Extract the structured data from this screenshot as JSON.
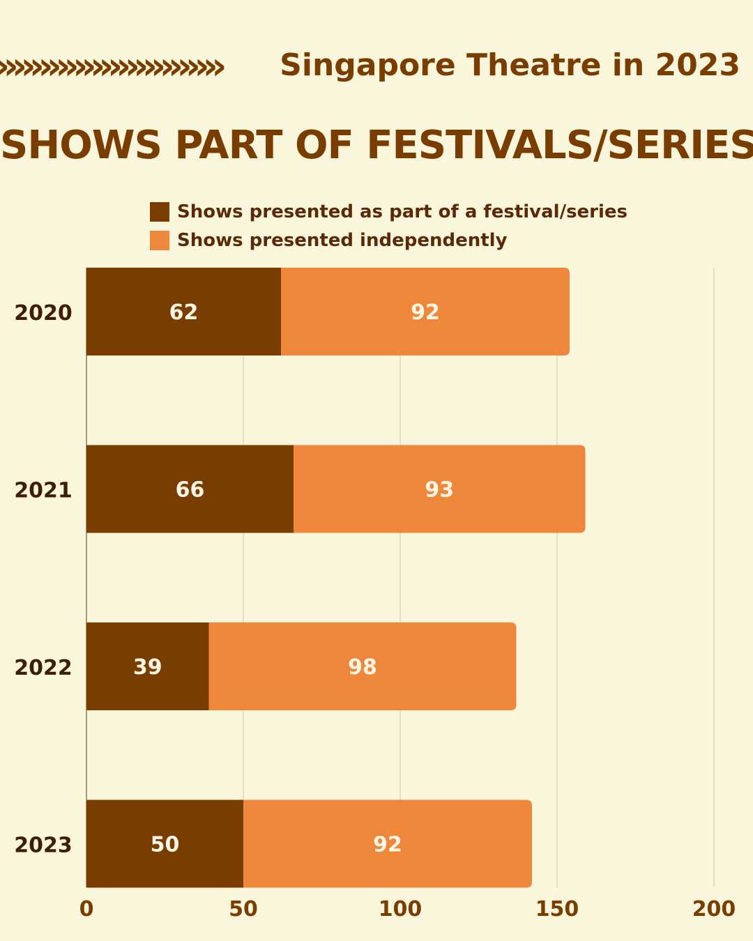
{
  "header": {
    "arrows": "»»»»»»»»»»»»»",
    "subtitle": "Singapore Theatre in 2023"
  },
  "title": "SHOWS PART OF FESTIVALS/SERIES",
  "colors": {
    "background": "#faf6dc",
    "dark": "#7a3d00",
    "orange": "#ef873a",
    "text": "#5a2a08",
    "grid": "#ddd7bd"
  },
  "chart_data": {
    "type": "bar",
    "orientation": "horizontal",
    "stacked": true,
    "categories": [
      "2020",
      "2021",
      "2022",
      "2023"
    ],
    "series": [
      {
        "name": "Shows presented as part of a festival/series",
        "color": "#7a3d00",
        "values": [
          62,
          66,
          39,
          50
        ]
      },
      {
        "name": "Shows presented independently",
        "color": "#ef873a",
        "values": [
          92,
          93,
          98,
          92
        ]
      }
    ],
    "xlim": [
      0,
      200
    ],
    "xticks": [
      0,
      50,
      100,
      150,
      200
    ],
    "grid": true,
    "legend": "top"
  }
}
